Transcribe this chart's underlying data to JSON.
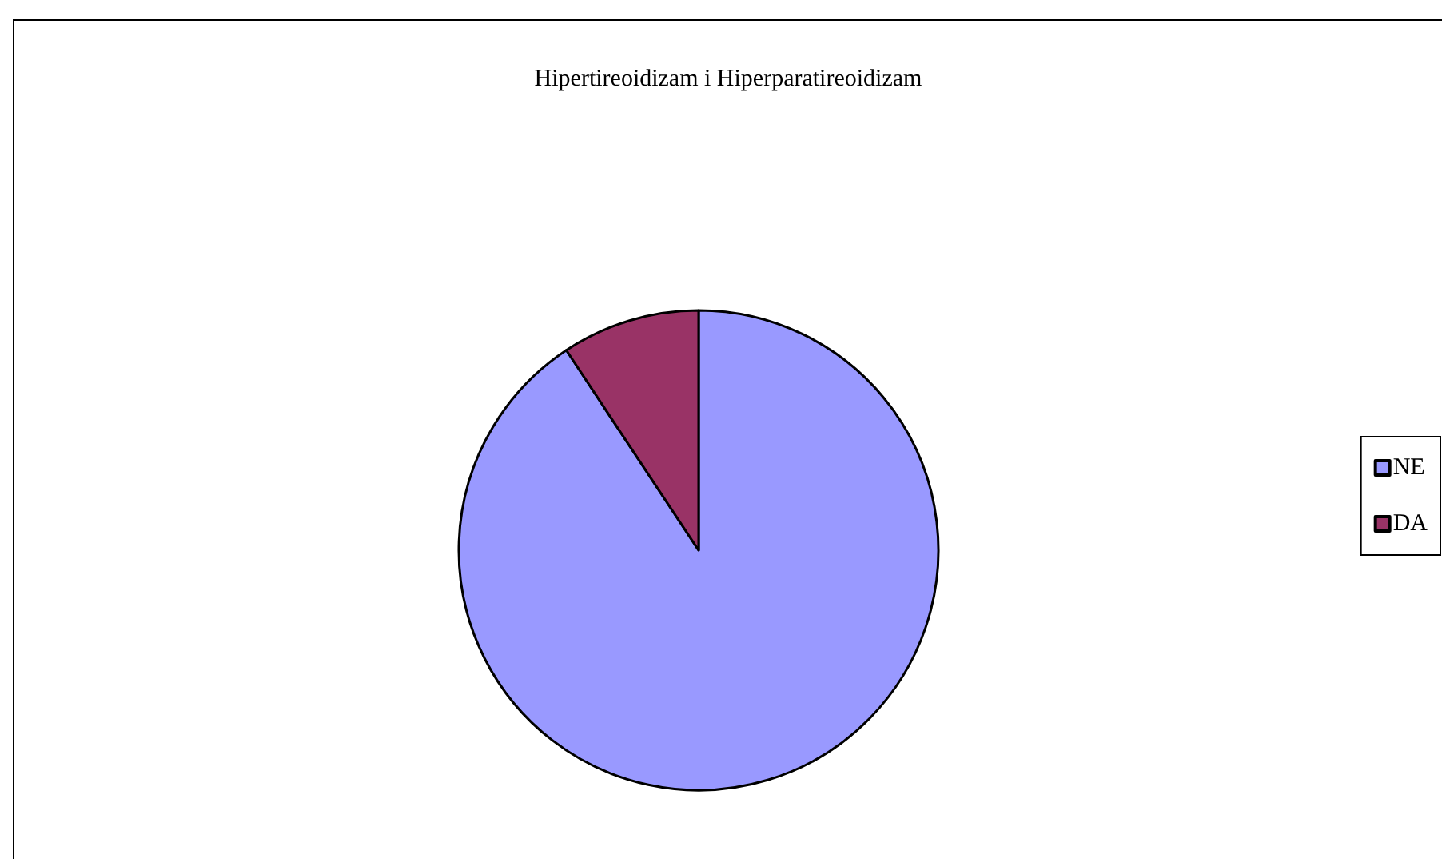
{
  "chart_data": {
    "type": "pie",
    "title": "Hipertireoidizam i Hiperparatireoidizam",
    "categories": [
      "NE",
      "DA"
    ],
    "values": [
      90.7,
      9.3
    ],
    "colors": [
      "#9999ff",
      "#993366"
    ],
    "legend": "right"
  }
}
